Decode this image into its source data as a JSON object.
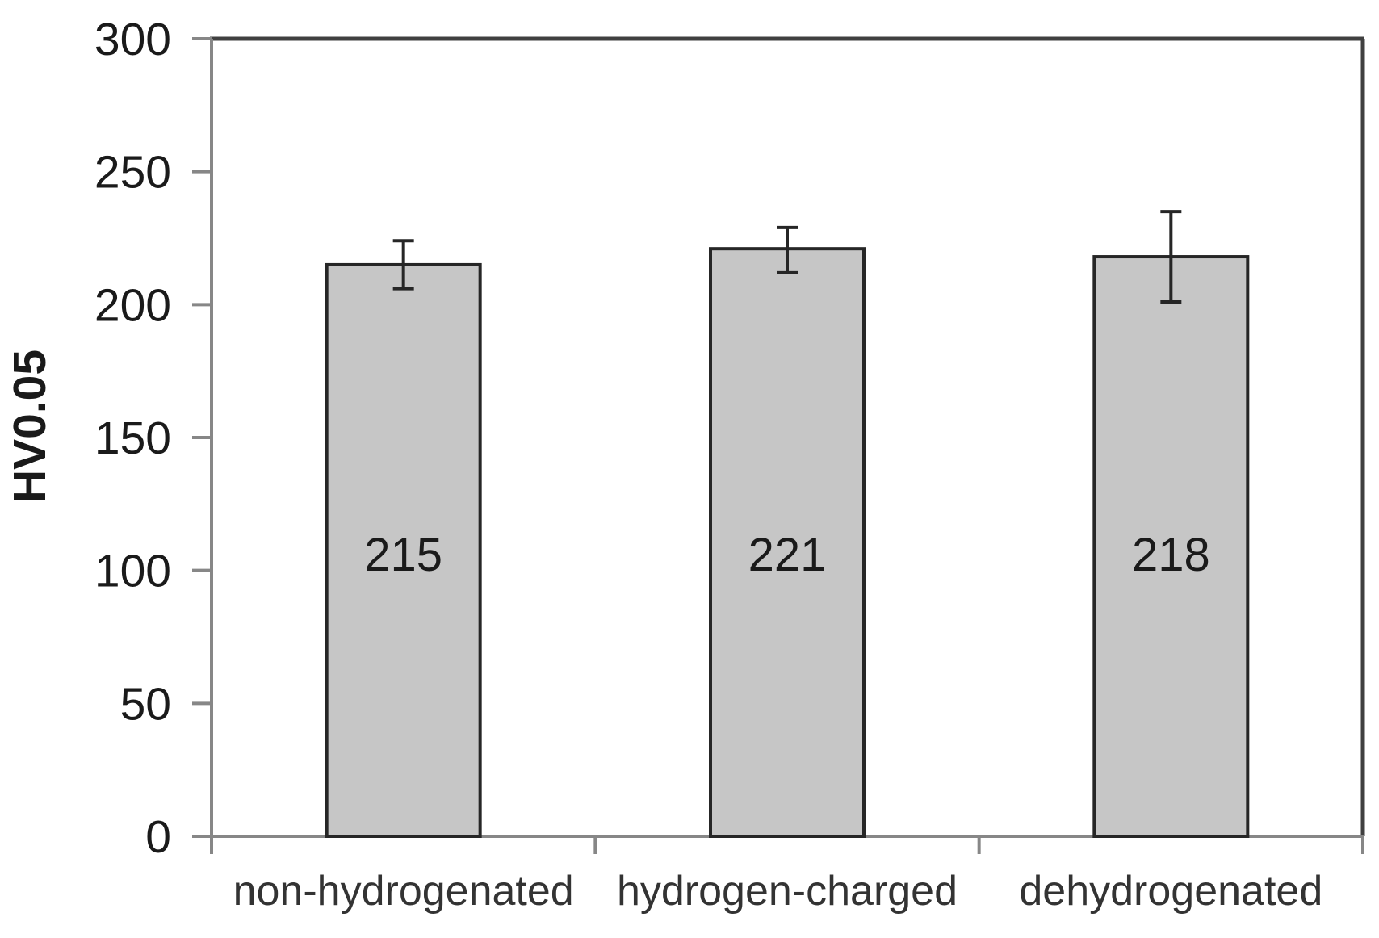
{
  "chart_data": {
    "type": "bar",
    "title": "",
    "categories": [
      "non-hydrogenated",
      "hydrogen-charged",
      "dehydrogenated"
    ],
    "values": [
      215,
      221,
      218
    ],
    "data_labels": [
      "215",
      "221",
      "218"
    ],
    "error_plus": [
      9,
      8,
      17
    ],
    "error_minus": [
      9,
      9,
      17
    ],
    "xlabel": "",
    "ylabel": "HV0.05",
    "ylim": [
      0,
      300
    ],
    "yticks": [
      0,
      50,
      100,
      150,
      200,
      250,
      300
    ],
    "grid": false,
    "legend": false,
    "colors": {
      "bar_fill": "#c6c6c6",
      "bar_stroke": "#262626",
      "error_bar": "#262626",
      "axis_line": "#878787",
      "plot_border": "#404040",
      "tick_label_text": "#1a1a1a",
      "category_label_text": "#333333",
      "data_label_text": "#1a1a1a",
      "background": "#ffffff"
    }
  }
}
